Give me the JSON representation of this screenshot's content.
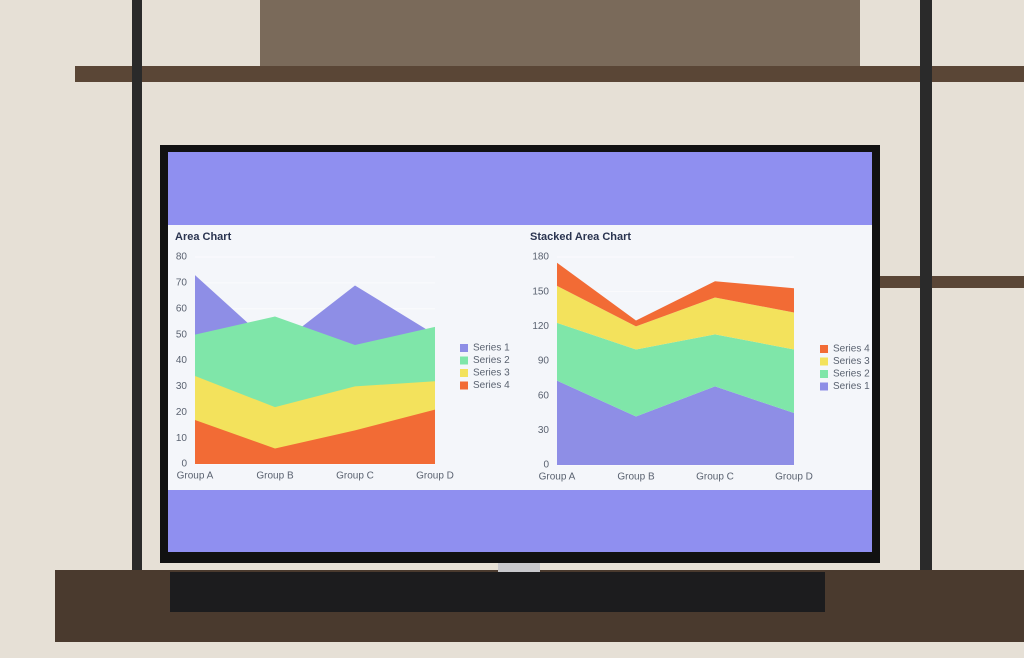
{
  "chart_data": [
    {
      "type": "area",
      "title": "Area Chart",
      "stacked": false,
      "categories": [
        "Group A",
        "Group B",
        "Group C",
        "Group D"
      ],
      "series": [
        {
          "name": "Series 1",
          "color": "#8e8ee6",
          "values": [
            73,
            45,
            69,
            50
          ]
        },
        {
          "name": "Series 2",
          "color": "#7fe6a9",
          "values": [
            50,
            57,
            46,
            53
          ]
        },
        {
          "name": "Series 3",
          "color": "#f3e25c",
          "values": [
            34,
            22,
            30,
            32
          ]
        },
        {
          "name": "Series 4",
          "color": "#f26b35",
          "values": [
            17,
            6,
            13,
            21
          ]
        }
      ],
      "ylim": [
        0,
        80
      ],
      "yticks": [
        0,
        10,
        20,
        30,
        40,
        50,
        60,
        70,
        80
      ],
      "grid": true,
      "legend": "right",
      "legend_reversed": false
    },
    {
      "type": "area",
      "title": "Stacked Area Chart",
      "stacked": true,
      "categories": [
        "Group A",
        "Group B",
        "Group C",
        "Group D"
      ],
      "series": [
        {
          "name": "Series 1",
          "color": "#8e8ee6",
          "values": [
            73,
            42,
            68,
            45
          ]
        },
        {
          "name": "Series 2",
          "color": "#7fe6a9",
          "values": [
            50,
            58,
            45,
            55
          ]
        },
        {
          "name": "Series 3",
          "color": "#f3e25c",
          "values": [
            32,
            20,
            32,
            32
          ]
        },
        {
          "name": "Series 4",
          "color": "#f26b35",
          "values": [
            20,
            5,
            14,
            21
          ]
        }
      ],
      "ylim": [
        0,
        180
      ],
      "yticks": [
        0,
        30,
        60,
        90,
        120,
        150,
        180
      ],
      "grid": true,
      "legend": "right",
      "legend_reversed": true
    }
  ]
}
